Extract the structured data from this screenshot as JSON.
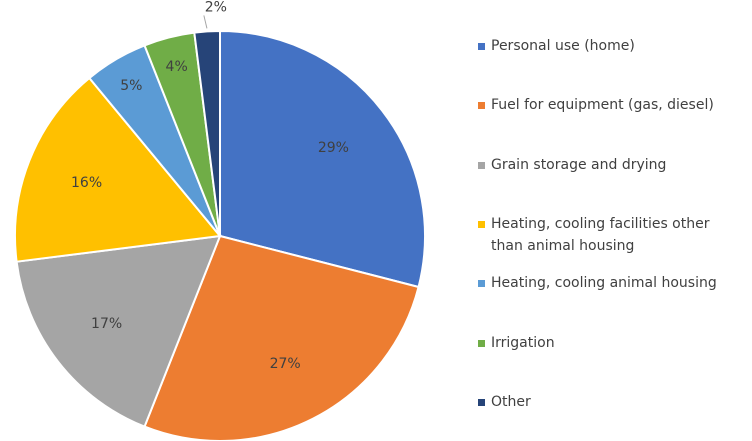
{
  "chart_data": {
    "type": "pie",
    "categories": [
      "Personal use (home)",
      "Fuel for equipment (gas, diesel)",
      "Grain storage and drying",
      "Heating, cooling facilities other than animal housing",
      "Heating, cooling animal housing",
      "Irrigation",
      "Other"
    ],
    "values": [
      29,
      27,
      17,
      16,
      5,
      4,
      2
    ],
    "value_labels": [
      "29%",
      "27%",
      "17%",
      "16%",
      "5%",
      "4%",
      "2%"
    ],
    "colors": [
      "#4472c4",
      "#ed7d31",
      "#a5a5a5",
      "#ffc000",
      "#5b9bd5",
      "#70ad47",
      "#264478"
    ],
    "legend": "right"
  }
}
